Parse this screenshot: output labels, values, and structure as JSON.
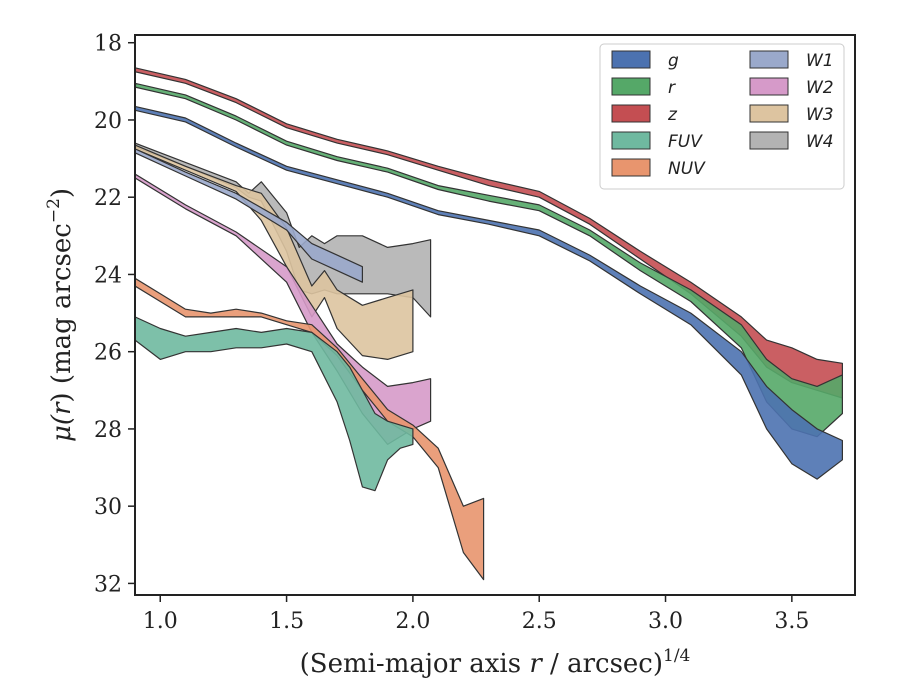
{
  "chart_data": {
    "type": "area",
    "xlabel": "(Semi-major axis r / arcsec)",
    "xlabel_parts": {
      "prefix": "(Semi-major axis ",
      "var": "r",
      "mid": " / arcsec)",
      "sup": "1/4"
    },
    "ylabel": "μ(r) (mag arcsec−2)",
    "ylabel_parts": {
      "mu": "μ(",
      "var": "r",
      "rest": ") (mag arcsec",
      "sup": "−2",
      "end": ")"
    },
    "xlim": [
      0.9,
      3.75
    ],
    "ylim": [
      32.3,
      17.8
    ],
    "y_inverted": true,
    "xticks": [
      1.0,
      1.5,
      2.0,
      2.5,
      3.0,
      3.5
    ],
    "xtick_labels": [
      "1.0",
      "1.5",
      "2.0",
      "2.5",
      "3.0",
      "3.5"
    ],
    "yticks": [
      18,
      20,
      22,
      24,
      26,
      28,
      30,
      32
    ],
    "ytick_labels": [
      "18",
      "20",
      "22",
      "24",
      "26",
      "28",
      "30",
      "32"
    ],
    "grid": false,
    "legend_position": "top-right",
    "legend_columns": 2,
    "series": [
      {
        "name": "g",
        "color": "#4c72b0",
        "x": [
          0.9,
          1.1,
          1.3,
          1.5,
          1.7,
          1.9,
          2.1,
          2.3,
          2.5,
          2.7,
          2.9,
          3.1,
          3.3,
          3.4,
          3.5,
          3.6,
          3.7
        ],
        "y_lo": [
          19.65,
          19.95,
          20.6,
          21.2,
          21.55,
          21.9,
          22.35,
          22.6,
          22.85,
          23.5,
          24.3,
          25.0,
          26.0,
          26.9,
          27.5,
          28.0,
          28.3
        ],
        "y_hi": [
          19.75,
          20.05,
          20.7,
          21.3,
          21.65,
          22.0,
          22.45,
          22.7,
          23.0,
          23.65,
          24.5,
          25.3,
          26.6,
          28.0,
          28.9,
          29.3,
          28.8
        ]
      },
      {
        "name": "r",
        "color": "#55a868",
        "x": [
          0.9,
          1.1,
          1.3,
          1.5,
          1.7,
          1.9,
          2.1,
          2.3,
          2.5,
          2.7,
          2.9,
          3.1,
          3.3,
          3.4,
          3.5,
          3.6,
          3.7
        ],
        "y_lo": [
          19.05,
          19.35,
          19.9,
          20.55,
          20.95,
          21.25,
          21.7,
          21.95,
          22.2,
          22.85,
          23.7,
          24.4,
          25.3,
          26.2,
          26.7,
          26.9,
          26.6
        ],
        "y_hi": [
          19.15,
          19.45,
          20.0,
          20.65,
          21.05,
          21.35,
          21.8,
          22.1,
          22.35,
          23.0,
          23.9,
          24.7,
          25.9,
          27.3,
          28.0,
          28.2,
          27.6
        ]
      },
      {
        "name": "z",
        "color": "#c44e52",
        "x": [
          0.9,
          1.1,
          1.3,
          1.5,
          1.7,
          1.9,
          2.1,
          2.3,
          2.5,
          2.7,
          2.9,
          3.1,
          3.3,
          3.4,
          3.5,
          3.6,
          3.7
        ],
        "y_lo": [
          18.65,
          18.95,
          19.45,
          20.1,
          20.5,
          20.8,
          21.2,
          21.55,
          21.85,
          22.55,
          23.4,
          24.2,
          25.1,
          25.7,
          25.9,
          26.2,
          26.3
        ],
        "y_hi": [
          18.75,
          19.05,
          19.55,
          20.2,
          20.6,
          20.9,
          21.3,
          21.7,
          22.0,
          22.7,
          23.6,
          24.5,
          25.6,
          26.4,
          26.8,
          27.0,
          27.2
        ]
      },
      {
        "name": "FUV",
        "color": "#6fb9a0",
        "x": [
          0.9,
          1.0,
          1.1,
          1.2,
          1.3,
          1.4,
          1.5,
          1.6,
          1.7,
          1.75,
          1.8,
          1.85,
          1.9,
          1.95,
          2.0
        ],
        "y_lo": [
          25.1,
          25.4,
          25.6,
          25.5,
          25.4,
          25.5,
          25.4,
          25.5,
          26.0,
          26.4,
          27.0,
          27.6,
          27.8,
          27.9,
          28.0
        ],
        "y_hi": [
          25.7,
          26.2,
          26.0,
          26.0,
          25.9,
          25.9,
          25.8,
          26.0,
          27.3,
          28.3,
          29.5,
          29.6,
          28.8,
          28.5,
          28.4
        ]
      },
      {
        "name": "NUV",
        "color": "#e8956e",
        "x": [
          0.9,
          1.0,
          1.1,
          1.2,
          1.3,
          1.4,
          1.5,
          1.6,
          1.7,
          1.8,
          1.9,
          2.0,
          2.1,
          2.2,
          2.28
        ],
        "y_lo": [
          24.1,
          24.5,
          24.9,
          25.0,
          24.9,
          25.0,
          25.2,
          25.3,
          25.9,
          26.7,
          27.5,
          27.9,
          28.5,
          30.0,
          29.8
        ],
        "y_hi": [
          24.3,
          24.7,
          25.1,
          25.1,
          25.1,
          25.1,
          25.3,
          25.5,
          26.1,
          27.0,
          27.8,
          28.2,
          29.0,
          31.2,
          31.9
        ]
      },
      {
        "name": "W1",
        "color": "#9aa9cb",
        "x": [
          0.9,
          1.1,
          1.3,
          1.5,
          1.6,
          1.7,
          1.8
        ],
        "y_lo": [
          20.75,
          21.35,
          21.9,
          22.65,
          23.2,
          23.5,
          23.8
        ],
        "y_hi": [
          20.85,
          21.45,
          22.05,
          22.85,
          23.6,
          23.9,
          24.2
        ]
      },
      {
        "name": "W2",
        "color": "#d69ac9",
        "x": [
          0.9,
          1.1,
          1.3,
          1.5,
          1.6,
          1.7,
          1.8,
          1.9,
          2.0,
          2.07
        ],
        "y_lo": [
          21.4,
          22.2,
          22.9,
          23.8,
          24.8,
          25.8,
          26.4,
          26.9,
          26.8,
          26.7
        ],
        "y_hi": [
          21.5,
          22.3,
          23.0,
          24.2,
          25.5,
          26.5,
          27.6,
          28.4,
          28.0,
          27.8
        ]
      },
      {
        "name": "W3",
        "color": "#ddc4a0",
        "x": [
          0.9,
          1.1,
          1.3,
          1.4,
          1.5,
          1.6,
          1.65,
          1.7,
          1.8,
          1.9,
          2.0
        ],
        "y_lo": [
          20.65,
          21.2,
          21.7,
          21.9,
          22.8,
          24.3,
          23.9,
          24.4,
          24.8,
          24.6,
          24.4
        ],
        "y_hi": [
          20.75,
          21.3,
          21.85,
          22.6,
          23.8,
          25.1,
          24.6,
          25.4,
          26.1,
          26.2,
          26.0
        ]
      },
      {
        "name": "W4",
        "color": "#b3b3b3",
        "x": [
          0.9,
          1.1,
          1.3,
          1.35,
          1.4,
          1.5,
          1.55,
          1.6,
          1.65,
          1.7,
          1.8,
          1.9,
          2.0,
          2.07
        ],
        "y_lo": [
          20.6,
          21.1,
          21.6,
          21.9,
          21.6,
          22.4,
          23.3,
          23.0,
          23.2,
          23.0,
          23.0,
          23.3,
          23.2,
          23.1
        ],
        "y_hi": [
          20.7,
          21.2,
          21.75,
          22.0,
          22.1,
          23.4,
          24.4,
          24.5,
          24.4,
          24.5,
          24.5,
          24.5,
          24.6,
          25.1
        ]
      }
    ]
  }
}
